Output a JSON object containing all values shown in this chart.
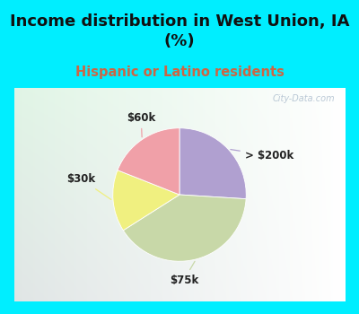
{
  "title": "Income distribution in West Union, IA\n(%)",
  "subtitle": "Hispanic or Latino residents",
  "title_color": "#111111",
  "subtitle_color": "#cc6644",
  "bg_cyan": "#00eeff",
  "slices": [
    {
      "label": "> $200k",
      "value": 26,
      "color": "#b0a0d0"
    },
    {
      "label": "$75k",
      "value": 40,
      "color": "#c8d8a8"
    },
    {
      "label": "$30k",
      "value": 15,
      "color": "#f0f080"
    },
    {
      "label": "$60k",
      "value": 19,
      "color": "#f0a0a8"
    }
  ],
  "label_fontsize": 8.5,
  "title_fontsize": 13,
  "subtitle_fontsize": 10.5,
  "watermark": "City-Data.com",
  "watermark_color": "#aabbcc",
  "chart_bg_left": "#c8e8d0",
  "chart_bg_right": "#f0f8f8",
  "startangle": 90
}
